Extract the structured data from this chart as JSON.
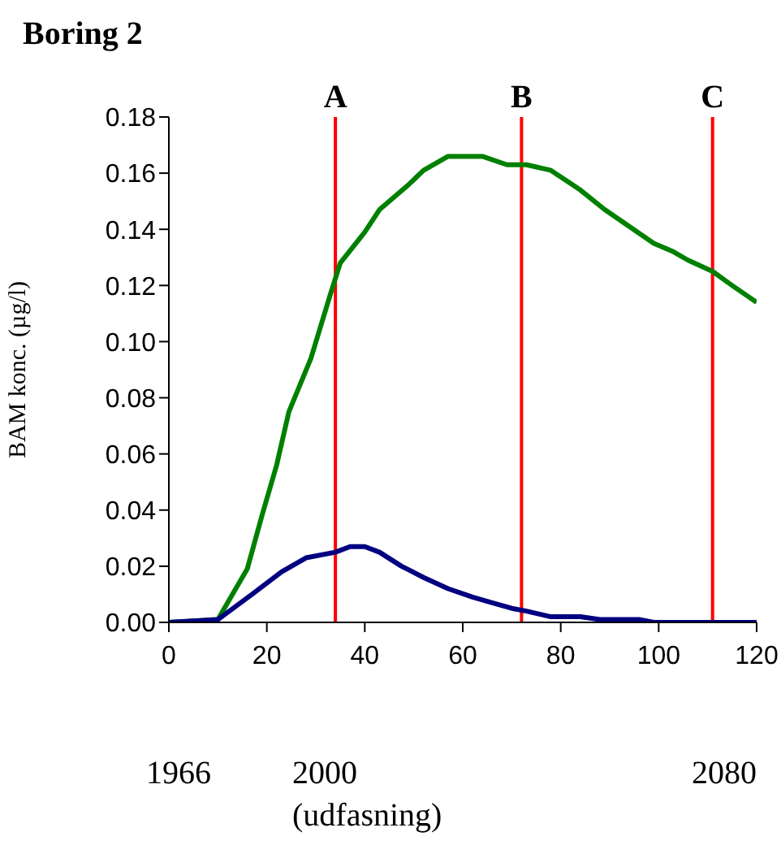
{
  "chart_data": {
    "type": "line",
    "title": "Boring 2",
    "ylabel": "BAM konc. (µg/l)",
    "xlim": [
      0,
      120
    ],
    "xticks": [
      0,
      20,
      40,
      60,
      80,
      100,
      120
    ],
    "ylim": [
      0,
      0.18
    ],
    "yticks": [
      {
        "value": 0,
        "label": "0.00"
      },
      {
        "value": 0.02,
        "label": "0.02"
      },
      {
        "value": 0.04,
        "label": "0.04"
      },
      {
        "value": 0.06,
        "label": "0.06"
      },
      {
        "value": 0.08,
        "label": "0.08"
      },
      {
        "value": 0.1,
        "label": "0.10"
      },
      {
        "value": 0.12,
        "label": "0.12"
      },
      {
        "value": 0.14,
        "label": "0.14"
      },
      {
        "value": 0.16,
        "label": "0.16"
      },
      {
        "value": 0.18,
        "label": "0.18"
      }
    ],
    "grid": false,
    "legend": false,
    "marker": "none",
    "line_style": "solid",
    "series": [
      {
        "color": "#008000",
        "x": [
          0,
          10,
          12,
          16,
          19,
          22,
          24.5,
          29,
          33,
          35,
          40,
          43,
          49,
          52,
          57,
          64,
          69,
          73,
          78,
          84,
          89,
          94,
          99,
          103,
          106,
          111,
          115,
          120
        ],
        "values": [
          0,
          0.001,
          0.007,
          0.019,
          0.038,
          0.056,
          0.075,
          0.094,
          0.117,
          0.128,
          0.139,
          0.147,
          0.156,
          0.161,
          0.166,
          0.166,
          0.163,
          0.163,
          0.161,
          0.154,
          0.147,
          0.141,
          0.135,
          0.132,
          0.129,
          0.125,
          0.12,
          0.114
        ]
      },
      {
        "color": "#000080",
        "x": [
          0,
          10,
          17,
          23,
          28,
          34,
          37,
          40,
          43,
          47.5,
          52,
          57,
          62,
          66,
          70,
          73,
          78,
          84,
          88,
          96,
          99,
          120
        ],
        "values": [
          0,
          0.001,
          0.01,
          0.018,
          0.023,
          0.025,
          0.027,
          0.027,
          0.025,
          0.02,
          0.016,
          0.012,
          0.009,
          0.007,
          0.005,
          0.004,
          0.002,
          0.002,
          0.001,
          0.001,
          0,
          0
        ]
      }
    ],
    "ref_lines": [
      {
        "axis": "x",
        "value": 34,
        "label": "A",
        "color": "#ff0000"
      },
      {
        "axis": "x",
        "value": 72,
        "label": "B",
        "color": "#ff0000"
      },
      {
        "axis": "x",
        "value": 111,
        "label": "C",
        "color": "#ff0000"
      }
    ],
    "annotations": [
      "1966",
      "2000\n(udfasning)",
      "2080"
    ]
  }
}
